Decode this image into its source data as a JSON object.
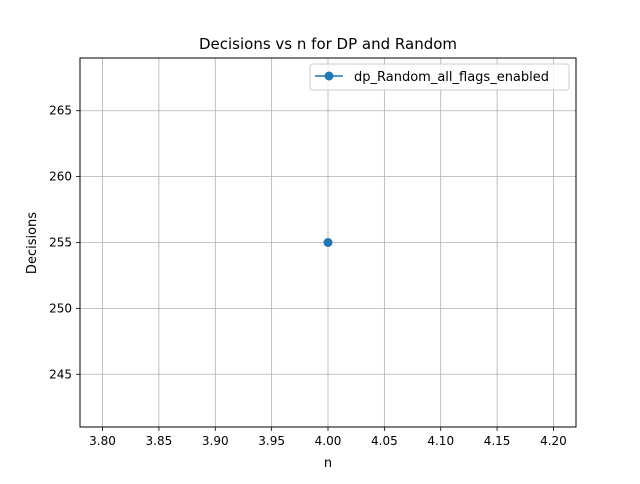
{
  "chart_data": {
    "type": "line",
    "title": "Decisions vs n for DP and Random",
    "xlabel": "n",
    "ylabel": "Decisions",
    "xlim": [
      3.78,
      4.22
    ],
    "ylim": [
      241,
      269
    ],
    "xticks": [
      3.8,
      3.85,
      3.9,
      3.95,
      4.0,
      4.05,
      4.1,
      4.15,
      4.2
    ],
    "xtick_labels": [
      "3.80",
      "3.85",
      "3.90",
      "3.95",
      "4.00",
      "4.05",
      "4.10",
      "4.15",
      "4.20"
    ],
    "yticks": [
      245,
      250,
      255,
      260,
      265
    ],
    "ytick_labels": [
      "245",
      "250",
      "255",
      "260",
      "265"
    ],
    "grid": true,
    "legend_position": "top-right",
    "series": [
      {
        "name": "dp_Random_all_flags_enabled",
        "color": "#1f77b4",
        "marker": "circle",
        "x": [
          4.0
        ],
        "y": [
          255
        ]
      }
    ]
  }
}
